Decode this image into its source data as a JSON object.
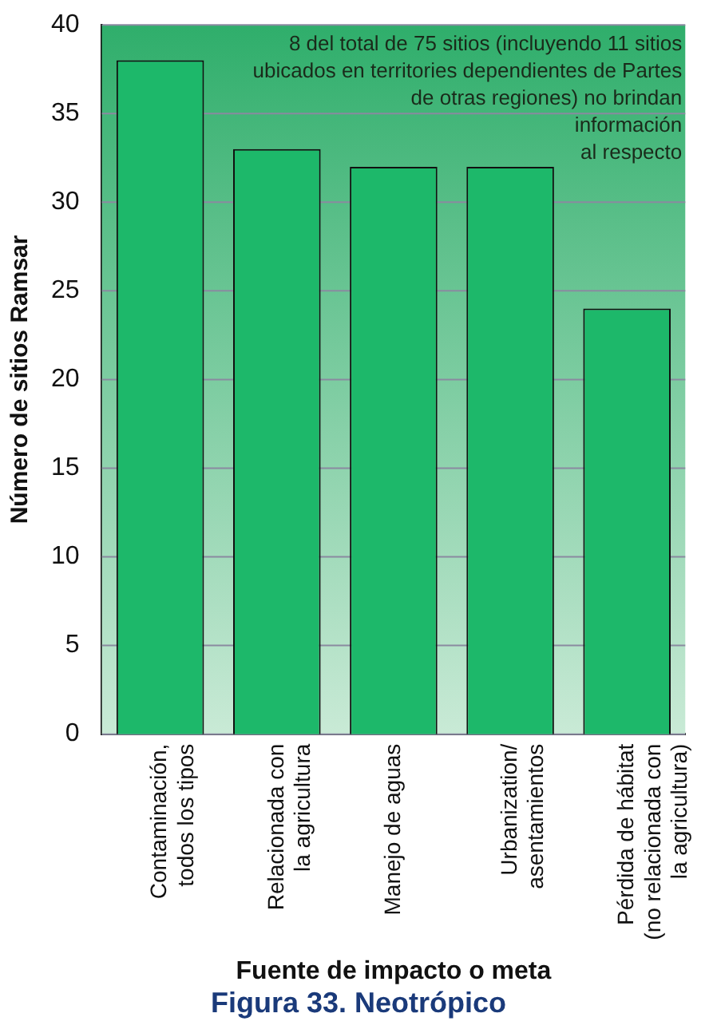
{
  "chart_data": {
    "type": "bar",
    "title": "Figura 33. Neotrópico",
    "xlabel": "Fuente de impacto o meta",
    "ylabel": "Número de sitios Ramsar",
    "categories": [
      "Contaminación,\ntodos los tipos",
      "Relacionada con\nla agricultura",
      "Manejo de aguas",
      "Urbanization/\nasentamientos",
      "Pérdida de hábitat\n(no relacionada con\nla agricultura)"
    ],
    "values": [
      38,
      33,
      32,
      32,
      24
    ],
    "color": "#1db86a",
    "ylim": [
      0,
      40
    ],
    "yticks": [
      0,
      5,
      10,
      15,
      20,
      25,
      30,
      35,
      40
    ],
    "grid": "y",
    "legend": false,
    "annotations": [
      "8 del total de 75 sitios (incluyendo 11 sitios\nubicados en territories dependientes de Partes\nde otras regiones) no brindan\ninformación\nal respecto"
    ]
  }
}
